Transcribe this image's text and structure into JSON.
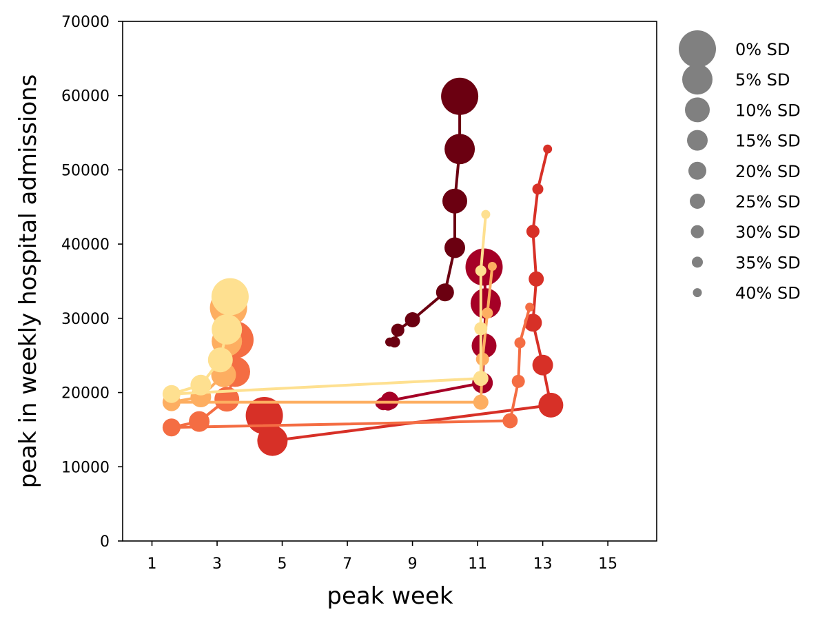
{
  "chart_data": {
    "type": "scatter",
    "title": "",
    "xlabel": "peak week",
    "ylabel": "peak in weekly hospital admissions",
    "xlim": [
      0.1,
      16.5
    ],
    "ylim": [
      0,
      70000
    ],
    "xticks": [
      1,
      3,
      5,
      7,
      9,
      11,
      13,
      15
    ],
    "xtick_labels": [
      "1",
      "3",
      "5",
      "7",
      "9",
      "11",
      "13",
      "15"
    ],
    "yticks": [
      0,
      10000,
      20000,
      30000,
      40000,
      50000,
      60000,
      70000
    ],
    "ytick_labels": [
      "0",
      "10000",
      "20000",
      "30000",
      "40000",
      "50000",
      "60000",
      "70000"
    ],
    "grid": false,
    "marker_size_encoding": "social distancing level (larger marker = lower SD)",
    "legend": {
      "placement": "outside-right",
      "color": "#808080",
      "entries": [
        "0% SD",
        "5% SD",
        "10% SD",
        "15% SD",
        "20% SD",
        "25% SD",
        "30% SD",
        "35% SD",
        "40% SD"
      ]
    },
    "series": [
      {
        "color": "#6b0011",
        "points": [
          [
            10.45,
            59900
          ],
          [
            10.45,
            52800
          ],
          [
            10.3,
            45800
          ],
          [
            10.3,
            39500
          ],
          [
            10.0,
            33500
          ],
          [
            9.0,
            29800
          ],
          [
            8.55,
            28400
          ],
          [
            8.45,
            26800
          ],
          [
            8.3,
            26800
          ]
        ]
      },
      {
        "color": "#a50026",
        "points": [
          [
            11.2,
            36900
          ],
          [
            11.25,
            32000
          ],
          [
            11.2,
            26300
          ],
          [
            11.15,
            21300
          ],
          [
            8.3,
            18900
          ],
          [
            8.25,
            18600
          ],
          [
            8.1,
            18500
          ],
          [
            8.05,
            18500
          ],
          [
            8.0,
            18500
          ]
        ]
      },
      {
        "color": "#d73027",
        "points": [
          [
            4.45,
            16900
          ],
          [
            4.7,
            13500
          ],
          [
            13.25,
            18300
          ],
          [
            13.0,
            23700
          ],
          [
            12.7,
            29400
          ],
          [
            12.8,
            35300
          ],
          [
            12.7,
            41700
          ],
          [
            12.85,
            47400
          ],
          [
            13.15,
            52800
          ]
        ]
      },
      {
        "color": "#f46d43",
        "points": [
          [
            3.55,
            27100
          ],
          [
            3.55,
            22800
          ],
          [
            3.3,
            19100
          ],
          [
            2.45,
            16100
          ],
          [
            1.6,
            15300
          ],
          [
            12.0,
            16200
          ],
          [
            12.25,
            21500
          ],
          [
            12.3,
            26700
          ],
          [
            12.6,
            31500
          ]
        ]
      },
      {
        "color": "#fdae61",
        "points": [
          [
            3.35,
            31400
          ],
          [
            3.3,
            26900
          ],
          [
            3.2,
            22400
          ],
          [
            2.5,
            19400
          ],
          [
            1.6,
            18700
          ],
          [
            11.1,
            18700
          ],
          [
            11.15,
            24500
          ],
          [
            11.3,
            30700
          ],
          [
            11.45,
            37000
          ]
        ]
      },
      {
        "color": "#fee090",
        "points": [
          [
            3.4,
            32900
          ],
          [
            3.3,
            28500
          ],
          [
            3.1,
            24400
          ],
          [
            2.5,
            21000
          ],
          [
            1.6,
            19800
          ],
          [
            11.1,
            21900
          ],
          [
            11.1,
            28600
          ],
          [
            11.1,
            36400
          ],
          [
            11.25,
            44000
          ]
        ]
      }
    ]
  }
}
